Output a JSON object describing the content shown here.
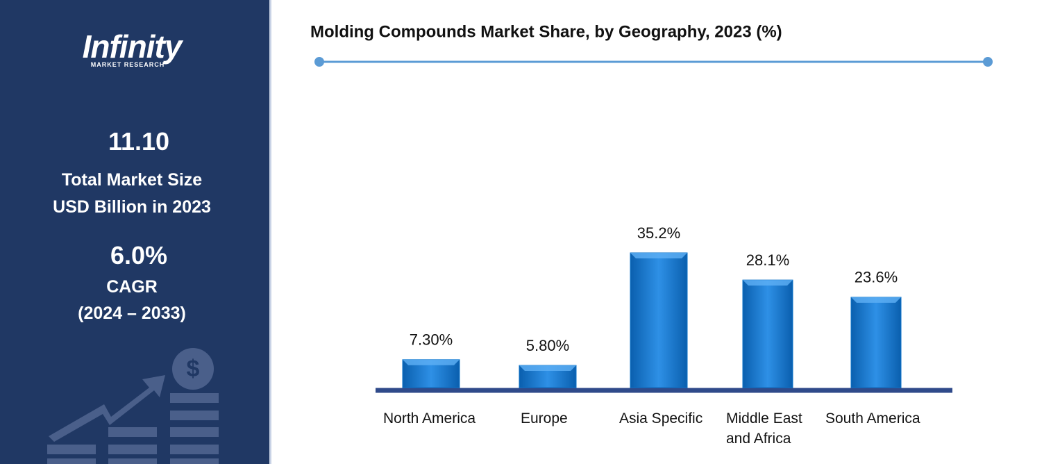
{
  "sidebar": {
    "logo": "Infinity",
    "logo_subtitle": "MARKET RESEARCH",
    "market_size": "11.10",
    "market_size_label": "Total Market Size",
    "market_size_unit": "USD Billion in 2023",
    "cagr": "6.0%",
    "cagr_label": "CAGR",
    "cagr_period": "(2024 – 2033)"
  },
  "chart_data": {
    "type": "bar",
    "title": "Molding Compounds Market Share, by Geography, 2023 (%)",
    "categories": [
      "North America",
      "Europe",
      "Asia Specific",
      "Middle East and Africa",
      "South America"
    ],
    "values": [
      7.3,
      5.8,
      35.2,
      28.1,
      23.6
    ],
    "value_labels": [
      "7.30%",
      "5.80%",
      "35.2%",
      "28.1%",
      "23.6%"
    ],
    "color": "#0b72c8"
  }
}
